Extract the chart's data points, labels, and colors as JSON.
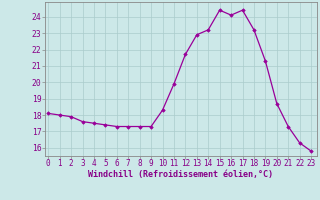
{
  "x": [
    0,
    1,
    2,
    3,
    4,
    5,
    6,
    7,
    8,
    9,
    10,
    11,
    12,
    13,
    14,
    15,
    16,
    17,
    18,
    19,
    20,
    21,
    22,
    23
  ],
  "y": [
    18.1,
    18.0,
    17.9,
    17.6,
    17.5,
    17.4,
    17.3,
    17.3,
    17.3,
    17.3,
    18.3,
    19.9,
    21.7,
    22.9,
    23.2,
    24.4,
    24.1,
    24.4,
    23.2,
    21.3,
    18.7,
    17.3,
    16.3,
    15.8
  ],
  "line_color": "#990099",
  "marker": "D",
  "marker_size": 1.8,
  "bg_color": "#cce8e8",
  "grid_color": "#aacccc",
  "xlabel": "Windchill (Refroidissement éolien,°C)",
  "xlabel_color": "#880088",
  "ylabel_ticks": [
    16,
    17,
    18,
    19,
    20,
    21,
    22,
    23,
    24
  ],
  "xlim": [
    -0.3,
    23.5
  ],
  "ylim": [
    15.5,
    24.9
  ],
  "tick_color": "#880088",
  "axis_color": "#888888",
  "tick_fontsize": 5.5,
  "xlabel_fontsize": 6.0,
  "linewidth": 0.9
}
